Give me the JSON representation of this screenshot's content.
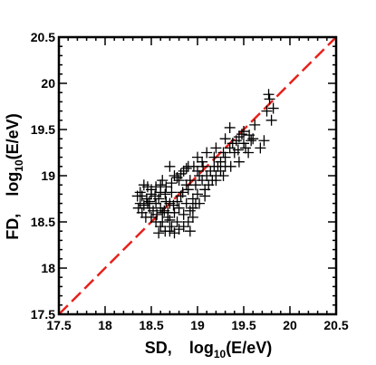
{
  "chart_data": {
    "type": "scatter",
    "xlabel": {
      "prefix": "SD,",
      "log": "log",
      "sub": "10",
      "unit": "(E/eV)"
    },
    "ylabel": {
      "prefix": "FD,",
      "log": "log",
      "sub": "10",
      "unit": "(E/eV)"
    },
    "xlim": [
      17.5,
      20.5
    ],
    "ylim": [
      17.5,
      20.5
    ],
    "xticks": [
      "17.5",
      "18",
      "18.5",
      "19",
      "19.5",
      "20",
      "20.5"
    ],
    "yticks": [
      "17.5",
      "18",
      "18.5",
      "19",
      "19.5",
      "20",
      "20.5"
    ],
    "reference_line": {
      "from": [
        17.5,
        17.5
      ],
      "to": [
        20.5,
        20.5
      ],
      "color": "#e8221b",
      "style": "dashed"
    },
    "marker": "plus",
    "marker_color": "#000000",
    "points": [
      [
        19.77,
        19.88
      ],
      [
        19.78,
        19.83
      ],
      [
        19.75,
        19.7
      ],
      [
        19.82,
        19.73
      ],
      [
        19.8,
        19.6
      ],
      [
        19.72,
        19.38
      ],
      [
        19.62,
        19.55
      ],
      [
        19.56,
        19.44
      ],
      [
        19.5,
        19.48
      ],
      [
        19.45,
        19.42
      ],
      [
        19.35,
        19.52
      ],
      [
        19.5,
        19.35
      ],
      [
        19.4,
        19.25
      ],
      [
        19.42,
        19.38
      ],
      [
        19.55,
        19.25
      ],
      [
        19.6,
        19.4
      ],
      [
        19.68,
        19.3
      ],
      [
        19.35,
        19.3
      ],
      [
        19.3,
        19.4
      ],
      [
        19.28,
        19.25
      ],
      [
        19.2,
        19.3
      ],
      [
        19.18,
        19.2
      ],
      [
        19.25,
        19.15
      ],
      [
        19.1,
        19.25
      ],
      [
        19.22,
        19.1
      ],
      [
        19.3,
        19.1
      ],
      [
        19.45,
        19.15
      ],
      [
        19.2,
        19.0
      ],
      [
        19.05,
        19.15
      ],
      [
        19.0,
        19.05
      ],
      [
        19.0,
        19.2
      ],
      [
        18.9,
        19.1
      ],
      [
        18.85,
        19.05
      ],
      [
        18.7,
        19.1
      ],
      [
        18.75,
        19.0
      ],
      [
        18.8,
        18.95
      ],
      [
        18.6,
        18.9
      ],
      [
        18.5,
        18.85
      ],
      [
        18.45,
        18.75
      ],
      [
        18.42,
        18.9
      ],
      [
        18.38,
        18.7
      ],
      [
        18.35,
        18.78
      ],
      [
        18.4,
        18.6
      ],
      [
        18.48,
        18.65
      ],
      [
        18.55,
        18.7
      ],
      [
        18.5,
        18.55
      ],
      [
        18.55,
        18.5
      ],
      [
        18.6,
        18.45
      ],
      [
        18.62,
        18.6
      ],
      [
        18.65,
        18.8
      ],
      [
        18.7,
        18.7
      ],
      [
        18.68,
        18.55
      ],
      [
        18.65,
        18.4
      ],
      [
        18.72,
        18.45
      ],
      [
        18.75,
        18.6
      ],
      [
        18.78,
        18.5
      ],
      [
        18.8,
        18.65
      ],
      [
        18.82,
        18.78
      ],
      [
        18.85,
        18.58
      ],
      [
        18.88,
        18.7
      ],
      [
        18.9,
        18.85
      ],
      [
        18.92,
        18.62
      ],
      [
        18.95,
        18.75
      ],
      [
        18.98,
        18.9
      ],
      [
        19.0,
        18.8
      ],
      [
        19.05,
        18.95
      ],
      [
        19.02,
        18.7
      ],
      [
        19.08,
        18.85
      ],
      [
        19.1,
        19.0
      ],
      [
        19.12,
        18.9
      ],
      [
        18.58,
        18.38
      ],
      [
        18.62,
        18.5
      ],
      [
        18.7,
        18.4
      ],
      [
        18.75,
        18.38
      ],
      [
        18.6,
        18.65
      ],
      [
        18.66,
        18.72
      ],
      [
        18.72,
        18.82
      ],
      [
        18.58,
        18.75
      ],
      [
        18.52,
        18.62
      ],
      [
        18.46,
        18.7
      ],
      [
        18.44,
        18.55
      ],
      [
        18.4,
        18.78
      ],
      [
        18.36,
        18.65
      ],
      [
        18.5,
        18.8
      ],
      [
        18.55,
        18.88
      ],
      [
        18.62,
        18.95
      ],
      [
        18.68,
        18.6
      ],
      [
        18.74,
        18.68
      ],
      [
        18.78,
        18.72
      ],
      [
        18.84,
        18.82
      ],
      [
        18.88,
        18.9
      ],
      [
        18.92,
        18.95
      ],
      [
        18.95,
        18.65
      ],
      [
        18.98,
        18.7
      ],
      [
        19.02,
        19.0
      ],
      [
        19.06,
        19.1
      ],
      [
        19.08,
        18.78
      ],
      [
        19.14,
        19.05
      ],
      [
        19.16,
        18.95
      ],
      [
        19.18,
        19.1
      ],
      [
        19.25,
        19.05
      ],
      [
        19.3,
        19.2
      ],
      [
        19.38,
        19.35
      ],
      [
        19.48,
        19.45
      ],
      [
        19.52,
        19.3
      ],
      [
        18.8,
        18.42
      ],
      [
        18.85,
        18.45
      ],
      [
        18.9,
        18.5
      ],
      [
        18.92,
        18.4
      ],
      [
        18.95,
        18.55
      ],
      [
        18.7,
        18.52
      ],
      [
        18.64,
        18.62
      ],
      [
        18.56,
        18.58
      ],
      [
        18.48,
        18.72
      ],
      [
        18.42,
        18.68
      ],
      [
        18.38,
        18.82
      ],
      [
        18.46,
        18.88
      ],
      [
        18.54,
        18.78
      ],
      [
        18.6,
        18.82
      ],
      [
        18.66,
        18.88
      ],
      [
        18.72,
        18.92
      ],
      [
        18.78,
        18.98
      ],
      [
        18.82,
        19.02
      ],
      [
        18.88,
        19.08
      ],
      [
        18.96,
        19.1
      ],
      [
        19.2,
        18.95
      ],
      [
        19.28,
        19.0
      ],
      [
        19.36,
        19.1
      ],
      [
        19.44,
        19.28
      ],
      [
        19.58,
        19.38
      ]
    ]
  }
}
